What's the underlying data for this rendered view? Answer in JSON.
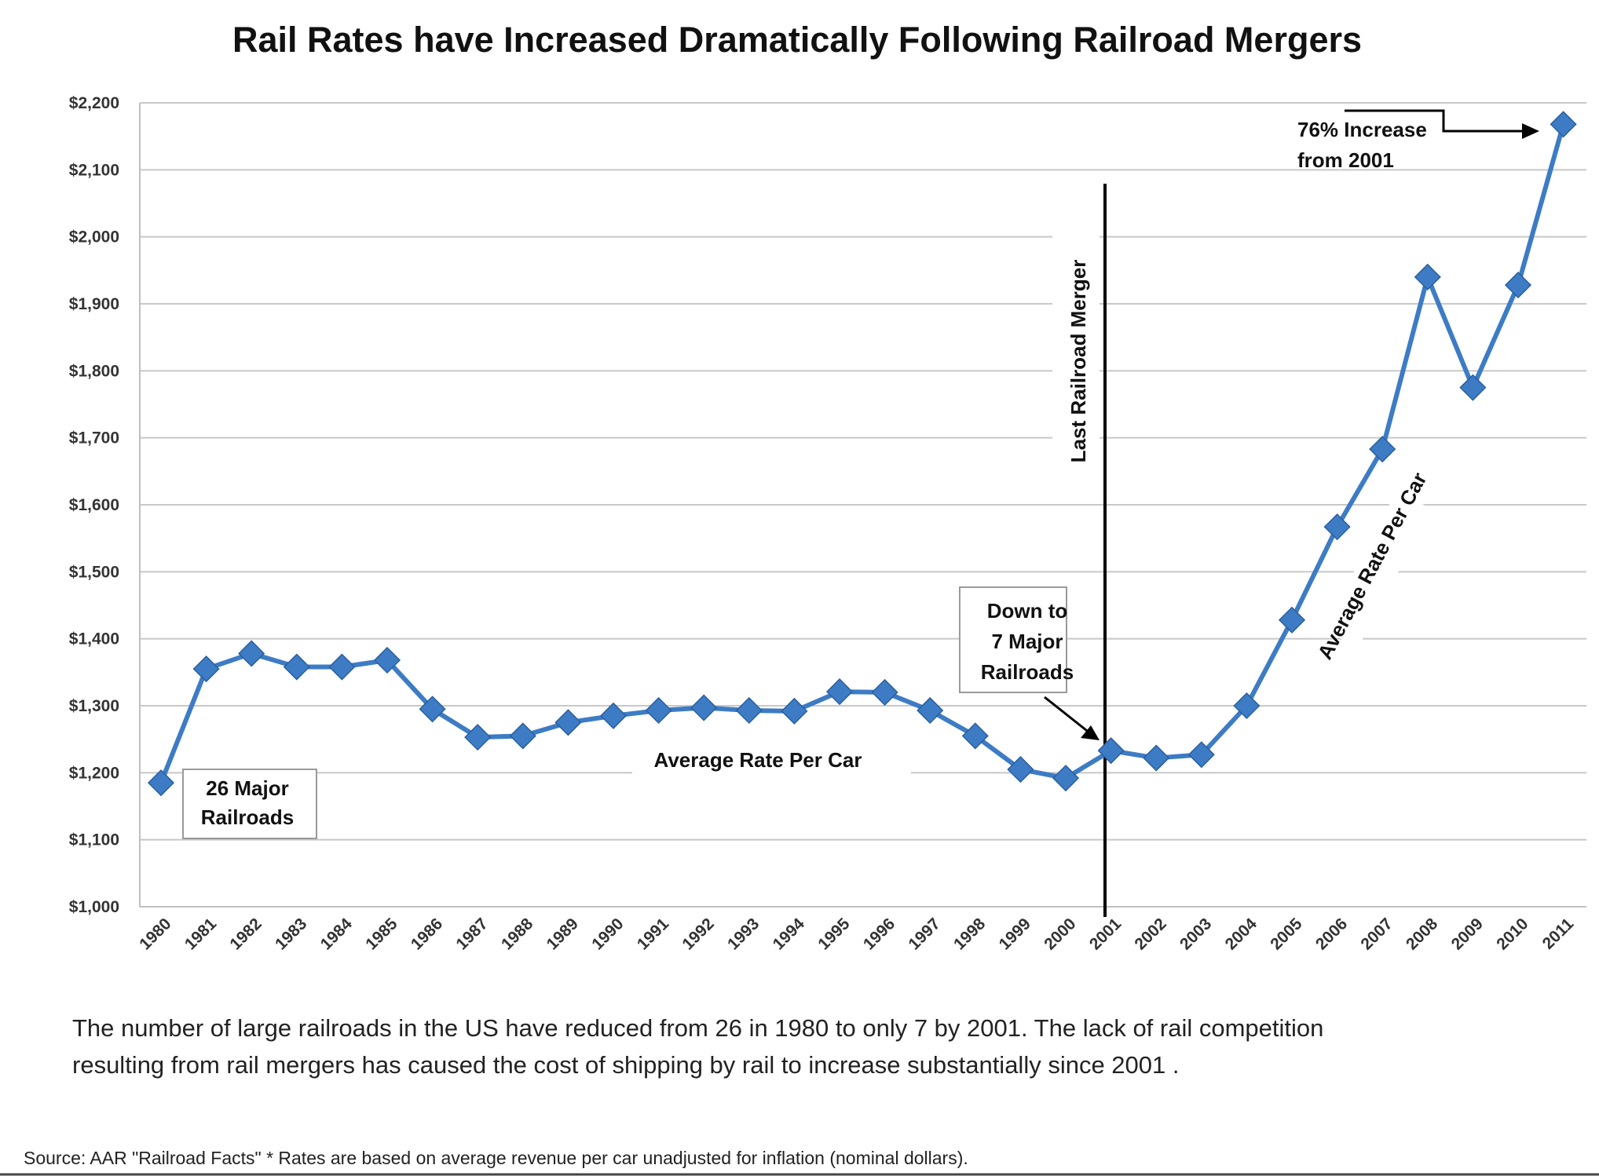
{
  "chart_data": {
    "type": "line",
    "title": "Rail Rates have Increased Dramatically Following Railroad Mergers",
    "xlabel": "",
    "ylabel": "",
    "x": [
      "1980",
      "1981",
      "1982",
      "1983",
      "1984",
      "1985",
      "1986",
      "1987",
      "1988",
      "1989",
      "1990",
      "1991",
      "1992",
      "1993",
      "1994",
      "1995",
      "1996",
      "1997",
      "1998",
      "1999",
      "2000",
      "2001",
      "2002",
      "2003",
      "2004",
      "2005",
      "2006",
      "2007",
      "2008",
      "2009",
      "2010",
      "2011"
    ],
    "series": [
      {
        "name": "Average Rate Per Car",
        "values": [
          1185,
          1355,
          1378,
          1358,
          1358,
          1368,
          1295,
          1253,
          1255,
          1275,
          1285,
          1293,
          1297,
          1293,
          1292,
          1321,
          1320,
          1293,
          1255,
          1205,
          1192,
          1233,
          1222,
          1227,
          1300,
          1428,
          1567,
          1683,
          1940,
          1775,
          1928,
          2168
        ]
      }
    ],
    "ylim": [
      1000,
      2200
    ],
    "yticks": [
      "$1,000",
      "$1,100",
      "$1,200",
      "$1,300",
      "$1,400",
      "$1,500",
      "$1,600",
      "$1,700",
      "$1,800",
      "$1,900",
      "$2,000",
      "$2,100",
      "$2,200"
    ],
    "grid": true,
    "color": "#3D7CC5",
    "annotations": {
      "start_box": [
        "26 Major",
        "Railroads"
      ],
      "merger_box": [
        "Down to",
        "7 Major",
        "Railroads"
      ],
      "merger_line_label": "Last Railroad Merger",
      "increase_label": [
        "76% Increase",
        "from 2001"
      ],
      "series_label_flat": "Average Rate Per Car",
      "series_label_rising": "Average Rate Per Car"
    }
  },
  "footer": {
    "caption_line1": "The number of large railroads in the US have reduced from 26 in 1980 to only 7 by 2001. The lack of rail competition",
    "caption_line2": "resulting from rail mergers has caused the cost of shipping by rail to increase substantially since 2001 .",
    "source": "Source: AAR \"Railroad Facts\"   * Rates are based on average revenue per car unadjusted for inflation (nominal dollars)."
  }
}
